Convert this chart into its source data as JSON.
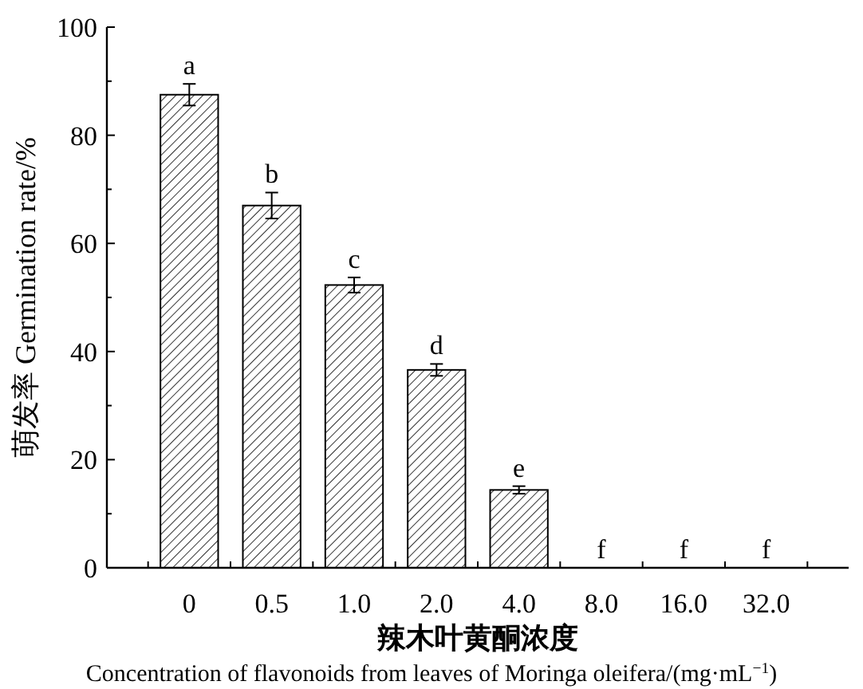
{
  "chart_data": {
    "type": "bar",
    "ylabel": "萌发率 Germination rate/%",
    "xlabel": "辣木叶黄酮浓度\nConcentration of flavonoids from leaves of Moringa oleifera/(mg·mL$^{−1}$)",
    "categories": [
      "0",
      "0.5",
      "1.0",
      "2.0",
      "4.0",
      "8.0",
      "16.0",
      "32.0"
    ],
    "values": [
      87.5,
      67,
      52.3,
      36.6,
      14.4,
      0,
      0,
      0
    ],
    "errors": [
      2,
      2.4,
      1.4,
      1.1,
      0.7,
      null,
      null,
      null
    ],
    "color": "#000000",
    "ylim": [
      0,
      100
    ],
    "yticks": [
      0,
      {
        "value": 10,
        "label": null
      },
      20,
      {
        "value": 30,
        "label": null
      },
      40,
      {
        "value": 50,
        "label": null
      },
      60,
      {
        "value": 70,
        "label": null
      },
      80,
      {
        "value": 90,
        "label": null
      },
      100
    ],
    "grid": false,
    "annotations": [
      {
        "text": "a",
        "x": "0",
        "y": 89.5
      },
      {
        "text": "b",
        "x": "0.5",
        "y": 69.4
      },
      {
        "text": "c",
        "x": "1.0",
        "y": 53.7
      },
      {
        "text": "d",
        "x": "2.0",
        "y": 37.7
      },
      {
        "text": "e",
        "x": "4.0",
        "y": 15.1
      },
      {
        "text": "f",
        "x": "8.0",
        "y": 0
      },
      {
        "text": "f",
        "x": "16.0",
        "y": 0
      },
      {
        "text": "f",
        "x": "32.0",
        "y": 0
      }
    ]
  }
}
